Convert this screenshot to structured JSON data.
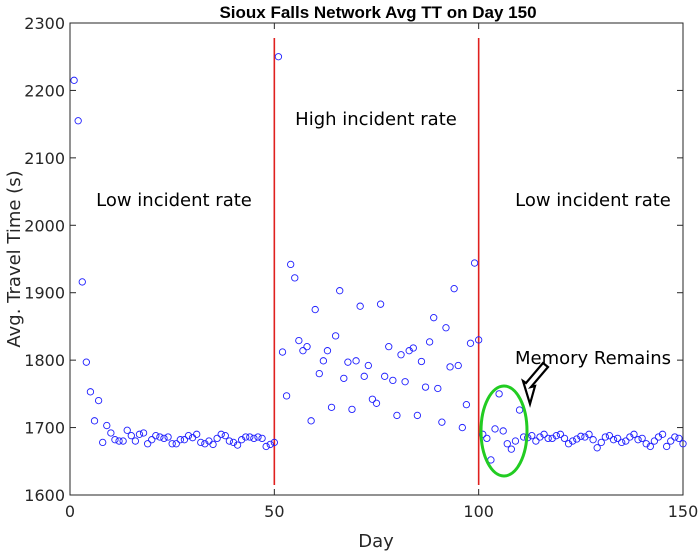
{
  "chart_data": {
    "type": "scatter",
    "title": "Sioux Falls Network Avg TT on Day 150",
    "xlabel": "Day",
    "ylabel": "Avg. Travel Time (s)",
    "xlim": [
      0,
      150
    ],
    "ylim": [
      1600,
      2300
    ],
    "xticks": [
      0,
      50,
      100,
      150
    ],
    "yticks": [
      1600,
      1700,
      1800,
      1900,
      2000,
      2100,
      2200,
      2300
    ],
    "grid": false,
    "marker": "open-circle",
    "marker_color": "#1f1fff",
    "vline_color": "#e0201e",
    "highlight_color": "#22cc22",
    "vlines": [
      50,
      100
    ],
    "annotations": {
      "left": "Low incident rate",
      "middle": "High incident rate",
      "right": "Low incident rate",
      "memory": "Memory Remains"
    },
    "series": [
      {
        "x": [
          1,
          2,
          3,
          4,
          5,
          6,
          7,
          8,
          9,
          10,
          11,
          12,
          13,
          14,
          15,
          16,
          17,
          18,
          19,
          20,
          21,
          22,
          23,
          24,
          25,
          26,
          27,
          28,
          29,
          30,
          31,
          32,
          33,
          34,
          35,
          36,
          37,
          38,
          39,
          40,
          41,
          42,
          43,
          44,
          45,
          46,
          47,
          48,
          49,
          50,
          51,
          52,
          53,
          54,
          55,
          56,
          57,
          58,
          59,
          60,
          61,
          62,
          63,
          64,
          65,
          66,
          67,
          68,
          69,
          70,
          71,
          72,
          73,
          74,
          75,
          76,
          77,
          78,
          79,
          80,
          81,
          82,
          83,
          84,
          85,
          86,
          87,
          88,
          89,
          90,
          91,
          92,
          93,
          94,
          95,
          96,
          97,
          98,
          99,
          100,
          101,
          102,
          103,
          104,
          105,
          106,
          107,
          108,
          109,
          110,
          111,
          112,
          113,
          114,
          115,
          116,
          117,
          118,
          119,
          120,
          121,
          122,
          123,
          124,
          125,
          126,
          127,
          128,
          129,
          130,
          131,
          132,
          133,
          134,
          135,
          136,
          137,
          138,
          139,
          140,
          141,
          142,
          143,
          144,
          145,
          146,
          147,
          148,
          149,
          150
        ],
        "y": [
          2215,
          2155,
          1916,
          1797,
          1753,
          1710,
          1740,
          1678,
          1703,
          1692,
          1682,
          1680,
          1680,
          1696,
          1688,
          1680,
          1690,
          1692,
          1676,
          1682,
          1688,
          1686,
          1684,
          1686,
          1676,
          1676,
          1682,
          1682,
          1688,
          1685,
          1690,
          1678,
          1676,
          1680,
          1675,
          1684,
          1690,
          1688,
          1680,
          1678,
          1674,
          1682,
          1686,
          1686,
          1684,
          1686,
          1684,
          1672,
          1675,
          1678,
          2250,
          1812,
          1747,
          1942,
          1922,
          1829,
          1814,
          1820,
          1710,
          1875,
          1780,
          1799,
          1814,
          1730,
          1836,
          1903,
          1773,
          1797,
          1727,
          1799,
          1880,
          1776,
          1792,
          1742,
          1736,
          1883,
          1776,
          1820,
          1770,
          1718,
          1808,
          1768,
          1814,
          1818,
          1718,
          1798,
          1760,
          1827,
          1863,
          1758,
          1708,
          1848,
          1790,
          1906,
          1792,
          1700,
          1734,
          1825,
          1944,
          1830,
          1690,
          1684,
          1652,
          1698,
          1750,
          1695,
          1676,
          1668,
          1680,
          1726,
          1686,
          1685,
          1688,
          1680,
          1686,
          1690,
          1684,
          1684,
          1688,
          1690,
          1684,
          1676,
          1680,
          1683,
          1687,
          1686,
          1690,
          1682,
          1670,
          1678,
          1686,
          1688,
          1682,
          1684,
          1678,
          1680,
          1686,
          1690,
          1682,
          1684,
          1676,
          1672,
          1680,
          1686,
          1690,
          1672,
          1680,
          1686,
          1684,
          1676
        ]
      }
    ]
  }
}
